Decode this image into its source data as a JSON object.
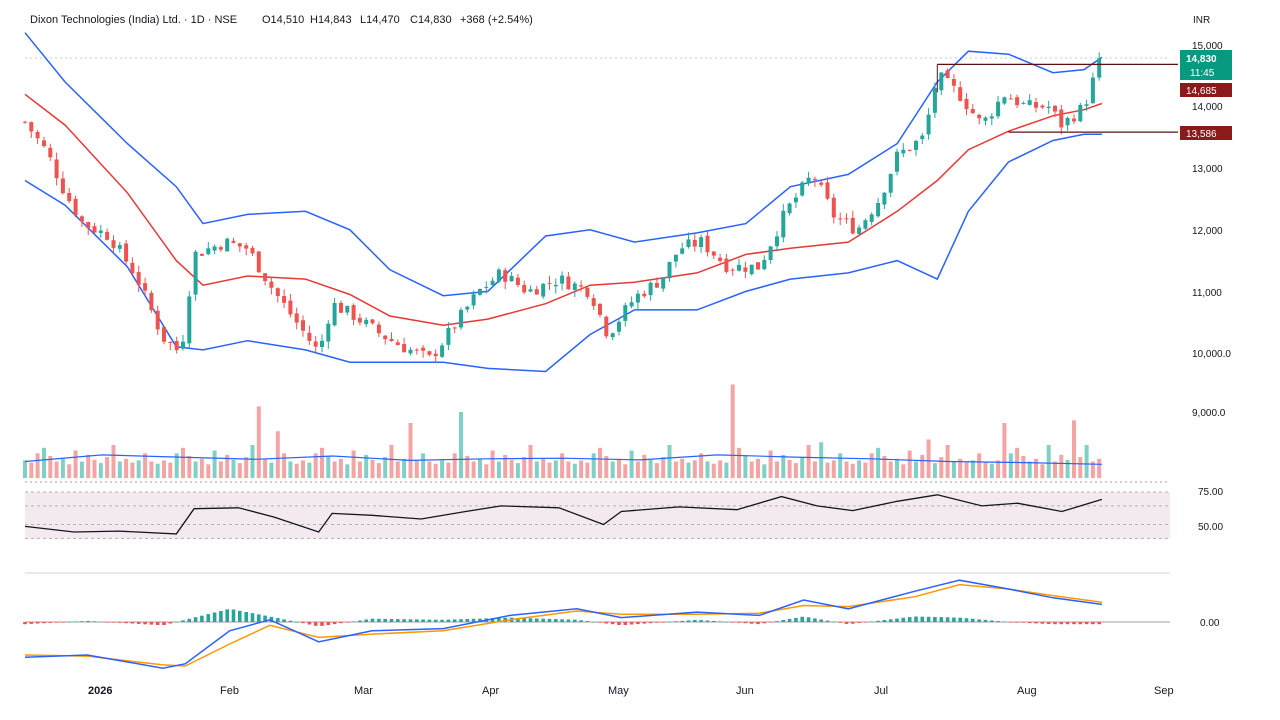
{
  "header": {
    "title": "Dixon Technologies (India) Ltd. · 1D · NSE",
    "open": "O14,510",
    "high": "H14,843",
    "low": "L14,470",
    "close": "C14,830",
    "change": "+368 (+2.54%)"
  },
  "colors": {
    "up": "#26a69a",
    "down": "#ef5350",
    "bb_band": "#2962ff",
    "bb_mid": "#e53935",
    "rsi_line": "#131722",
    "macd_line": "#2962ff",
    "signal_line": "#ff9800",
    "last_price_bg": "#089981",
    "level_bg": "#8b1a1a"
  },
  "chart_data": [
    {
      "type": "candlestick",
      "currency_label": "INR",
      "x_ticks": [
        "2026",
        "Feb",
        "Mar",
        "Apr",
        "May",
        "Jun",
        "Jul",
        "Aug",
        "Sep"
      ],
      "y_ticks": [
        "15,000",
        "14,000",
        "13,000",
        "12,000",
        "11,000",
        "10,000.0",
        "9,000.0"
      ],
      "ylim": [
        8000,
        15200
      ],
      "price_labels": {
        "last_price": "14,830",
        "countdown": "11:45",
        "upper_level": "14,685",
        "lower_level": "13,586"
      },
      "levels": [
        14685,
        13586
      ],
      "close_path": [
        [
          "2026-01-01",
          13750
        ],
        [
          "2026-01-06",
          13250
        ],
        [
          "2026-01-10",
          12600
        ],
        [
          "2026-01-14",
          12100
        ],
        [
          "2026-01-20",
          11900
        ],
        [
          "2026-01-26",
          11250
        ],
        [
          "2026-02-01",
          10250
        ],
        [
          "2026-02-05",
          10000
        ],
        [
          "2026-02-08",
          11600
        ],
        [
          "2026-02-15",
          11800
        ],
        [
          "2026-02-20",
          11700
        ],
        [
          "2026-02-26",
          11000
        ],
        [
          "2026-03-03",
          10500
        ],
        [
          "2026-03-08",
          10000
        ],
        [
          "2026-03-11",
          10800
        ],
        [
          "2026-03-16",
          10600
        ],
        [
          "2026-03-22",
          10300
        ],
        [
          "2026-03-27",
          10100
        ],
        [
          "2026-04-02",
          9900
        ],
        [
          "2026-04-08",
          10500
        ],
        [
          "2026-04-13",
          11000
        ],
        [
          "2026-04-18",
          11300
        ],
        [
          "2026-04-24",
          11000
        ],
        [
          "2026-05-01",
          11200
        ],
        [
          "2026-05-08",
          11000
        ],
        [
          "2026-05-12",
          10300
        ],
        [
          "2026-05-18",
          10900
        ],
        [
          "2026-05-24",
          11200
        ],
        [
          "2026-05-28",
          11700
        ],
        [
          "2026-06-02",
          11800
        ],
        [
          "2026-06-08",
          11400
        ],
        [
          "2026-06-15",
          11400
        ],
        [
          "2026-06-21",
          12300
        ],
        [
          "2026-06-27",
          12900
        ],
        [
          "2026-07-02",
          12200
        ],
        [
          "2026-07-07",
          12000
        ],
        [
          "2026-07-12",
          12500
        ],
        [
          "2026-07-16",
          13200
        ],
        [
          "2026-07-22",
          13500
        ],
        [
          "2026-07-25",
          14500
        ],
        [
          "2026-07-30",
          14200
        ],
        [
          "2026-08-04",
          13700
        ],
        [
          "2026-08-09",
          14200
        ],
        [
          "2026-08-14",
          14000
        ],
        [
          "2026-08-19",
          14000
        ],
        [
          "2026-08-22",
          13700
        ],
        [
          "2026-08-27",
          14000
        ],
        [
          "2026-08-31",
          14830
        ]
      ],
      "bollinger": {
        "upper": [
          [
            "2026-01-01",
            15200
          ],
          [
            "2026-01-10",
            14400
          ],
          [
            "2026-01-24",
            13400
          ],
          [
            "2026-02-04",
            12700
          ],
          [
            "2026-02-10",
            12100
          ],
          [
            "2026-02-20",
            12250
          ],
          [
            "2026-03-05",
            12300
          ],
          [
            "2026-03-15",
            12000
          ],
          [
            "2026-03-24",
            11350
          ],
          [
            "2026-04-05",
            10930
          ],
          [
            "2026-04-15",
            11000
          ],
          [
            "2026-04-28",
            11900
          ],
          [
            "2026-05-08",
            12000
          ],
          [
            "2026-05-18",
            11800
          ],
          [
            "2026-06-01",
            11950
          ],
          [
            "2026-06-12",
            12100
          ],
          [
            "2026-06-22",
            12700
          ],
          [
            "2026-07-05",
            12900
          ],
          [
            "2026-07-16",
            13400
          ],
          [
            "2026-07-25",
            14400
          ],
          [
            "2026-08-01",
            14900
          ],
          [
            "2026-08-10",
            14850
          ],
          [
            "2026-08-20",
            14550
          ],
          [
            "2026-08-27",
            14600
          ],
          [
            "2026-08-31",
            14800
          ]
        ],
        "middle": [
          [
            "2026-01-01",
            14200
          ],
          [
            "2026-01-10",
            13700
          ],
          [
            "2026-01-24",
            12600
          ],
          [
            "2026-02-04",
            11500
          ],
          [
            "2026-02-10",
            11100
          ],
          [
            "2026-02-20",
            11250
          ],
          [
            "2026-03-05",
            11200
          ],
          [
            "2026-03-15",
            10950
          ],
          [
            "2026-03-24",
            10600
          ],
          [
            "2026-04-05",
            10450
          ],
          [
            "2026-04-15",
            10550
          ],
          [
            "2026-04-28",
            10800
          ],
          [
            "2026-05-08",
            11100
          ],
          [
            "2026-05-18",
            11150
          ],
          [
            "2026-06-01",
            11300
          ],
          [
            "2026-06-12",
            11600
          ],
          [
            "2026-06-22",
            11700
          ],
          [
            "2026-07-05",
            11800
          ],
          [
            "2026-07-16",
            12300
          ],
          [
            "2026-07-25",
            12800
          ],
          [
            "2026-08-01",
            13300
          ],
          [
            "2026-08-10",
            13600
          ],
          [
            "2026-08-20",
            13850
          ],
          [
            "2026-08-27",
            13950
          ],
          [
            "2026-08-31",
            14050
          ]
        ],
        "lower": [
          [
            "2026-01-01",
            12800
          ],
          [
            "2026-01-10",
            12400
          ],
          [
            "2026-01-24",
            11400
          ],
          [
            "2026-02-04",
            10100
          ],
          [
            "2026-02-10",
            10050
          ],
          [
            "2026-02-20",
            10200
          ],
          [
            "2026-03-05",
            10050
          ],
          [
            "2026-03-15",
            9850
          ],
          [
            "2026-03-24",
            9850
          ],
          [
            "2026-04-05",
            9850
          ],
          [
            "2026-04-15",
            9750
          ],
          [
            "2026-04-28",
            9700
          ],
          [
            "2026-05-08",
            10300
          ],
          [
            "2026-05-18",
            10700
          ],
          [
            "2026-06-01",
            10700
          ],
          [
            "2026-06-12",
            11000
          ],
          [
            "2026-06-22",
            11200
          ],
          [
            "2026-07-05",
            11300
          ],
          [
            "2026-07-16",
            11500
          ],
          [
            "2026-07-25",
            11200
          ],
          [
            "2026-08-01",
            12300
          ],
          [
            "2026-08-10",
            13100
          ],
          [
            "2026-08-20",
            13450
          ],
          [
            "2026-08-27",
            13550
          ],
          [
            "2026-08-31",
            13550
          ]
        ]
      }
    },
    {
      "type": "bar",
      "series_kind": "volume",
      "volume_pattern": [
        0.32,
        0.28,
        0.45,
        0.55,
        0.4,
        0.3,
        0.35,
        0.25,
        0.5,
        0.3,
        0.42,
        0.33,
        0.27,
        0.38,
        0.6,
        0.3,
        0.35,
        0.28,
        0.32,
        0.45,
        0.3,
        0.26
      ],
      "volume_spikes": [
        [
          37,
          1.3
        ],
        [
          40,
          0.85
        ],
        [
          61,
          1.0
        ],
        [
          69,
          1.2
        ],
        [
          112,
          1.7
        ],
        [
          126,
          0.65
        ],
        [
          143,
          0.7
        ],
        [
          155,
          1.0
        ],
        [
          162,
          0.6
        ],
        [
          166,
          1.05
        ]
      ],
      "average_line": [
        0.3,
        0.42,
        0.38,
        0.34,
        0.4,
        0.32,
        0.35,
        0.36,
        0.33,
        0.42,
        0.38,
        0.35,
        0.3,
        0.28,
        0.25
      ]
    },
    {
      "type": "line",
      "series_kind": "rsi",
      "y_ticks": [
        "75.00",
        "50.00"
      ],
      "ylim": [
        15,
        85
      ],
      "values": [
        [
          "2026-01-01",
          38
        ],
        [
          "2026-01-12",
          32
        ],
        [
          "2026-01-22",
          33
        ],
        [
          "2026-02-04",
          30
        ],
        [
          "2026-02-08",
          57
        ],
        [
          "2026-02-18",
          58
        ],
        [
          "2026-02-26",
          48
        ],
        [
          "2026-03-08",
          32
        ],
        [
          "2026-03-11",
          52
        ],
        [
          "2026-03-20",
          50
        ],
        [
          "2026-03-31",
          46
        ],
        [
          "2026-04-10",
          54
        ],
        [
          "2026-04-18",
          60
        ],
        [
          "2026-05-01",
          58
        ],
        [
          "2026-05-11",
          40
        ],
        [
          "2026-05-15",
          54
        ],
        [
          "2026-05-28",
          59
        ],
        [
          "2026-06-10",
          56
        ],
        [
          "2026-06-20",
          70
        ],
        [
          "2026-06-28",
          60
        ],
        [
          "2026-07-06",
          55
        ],
        [
          "2026-07-16",
          65
        ],
        [
          "2026-07-25",
          72
        ],
        [
          "2026-08-04",
          60
        ],
        [
          "2026-08-12",
          63
        ],
        [
          "2026-08-22",
          54
        ],
        [
          "2026-08-31",
          67
        ]
      ]
    },
    {
      "type": "line",
      "series_kind": "macd",
      "y_ticks": [
        "0.00"
      ],
      "ylim": [
        -500,
        500
      ],
      "macd": [
        [
          "2026-01-01",
          -320
        ],
        [
          "2026-01-15",
          -300
        ],
        [
          "2026-02-01",
          -420
        ],
        [
          "2026-02-06",
          -380
        ],
        [
          "2026-02-16",
          -80
        ],
        [
          "2026-02-25",
          20
        ],
        [
          "2026-03-08",
          -180
        ],
        [
          "2026-03-20",
          -80
        ],
        [
          "2026-04-05",
          -60
        ],
        [
          "2026-04-20",
          60
        ],
        [
          "2026-05-05",
          120
        ],
        [
          "2026-05-15",
          40
        ],
        [
          "2026-06-01",
          90
        ],
        [
          "2026-06-15",
          60
        ],
        [
          "2026-06-25",
          200
        ],
        [
          "2026-07-05",
          120
        ],
        [
          "2026-07-20",
          280
        ],
        [
          "2026-07-30",
          380
        ],
        [
          "2026-08-10",
          300
        ],
        [
          "2026-08-20",
          220
        ],
        [
          "2026-08-31",
          160
        ]
      ],
      "signal": [
        [
          "2026-01-01",
          -300
        ],
        [
          "2026-01-15",
          -310
        ],
        [
          "2026-02-01",
          -390
        ],
        [
          "2026-02-06",
          -400
        ],
        [
          "2026-02-16",
          -200
        ],
        [
          "2026-02-25",
          -30
        ],
        [
          "2026-03-08",
          -140
        ],
        [
          "2026-03-20",
          -110
        ],
        [
          "2026-04-05",
          -80
        ],
        [
          "2026-04-20",
          20
        ],
        [
          "2026-05-05",
          100
        ],
        [
          "2026-05-15",
          70
        ],
        [
          "2026-06-01",
          70
        ],
        [
          "2026-06-15",
          80
        ],
        [
          "2026-06-25",
          150
        ],
        [
          "2026-07-05",
          140
        ],
        [
          "2026-07-20",
          230
        ],
        [
          "2026-07-30",
          340
        ],
        [
          "2026-08-10",
          300
        ],
        [
          "2026-08-20",
          240
        ],
        [
          "2026-08-31",
          180
        ]
      ]
    }
  ]
}
